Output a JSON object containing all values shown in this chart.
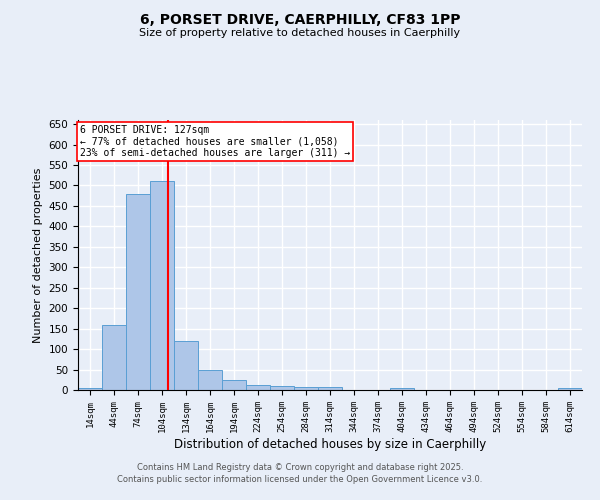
{
  "title1": "6, PORSET DRIVE, CAERPHILLY, CF83 1PP",
  "title2": "Size of property relative to detached houses in Caerphilly",
  "xlabel": "Distribution of detached houses by size in Caerphilly",
  "ylabel": "Number of detached properties",
  "bar_color": "#aec6e8",
  "bar_edge_color": "#5a9fd4",
  "background_color": "#e8eef8",
  "grid_color": "#ffffff",
  "red_line_x": 127,
  "annotation_title": "6 PORSET DRIVE: 127sqm",
  "annotation_line1": "← 77% of detached houses are smaller (1,058)",
  "annotation_line2": "23% of semi-detached houses are larger (311) →",
  "bin_edges": [
    14,
    44,
    74,
    104,
    134,
    164,
    194,
    224,
    254,
    284,
    314,
    344,
    374,
    404,
    434,
    464,
    494,
    524,
    554,
    584,
    614,
    644
  ],
  "bin_values": [
    5,
    160,
    480,
    510,
    120,
    50,
    25,
    12,
    10,
    8,
    8,
    0,
    0,
    5,
    0,
    0,
    0,
    0,
    0,
    0,
    4
  ],
  "ylim": [
    0,
    660
  ],
  "yticks": [
    0,
    50,
    100,
    150,
    200,
    250,
    300,
    350,
    400,
    450,
    500,
    550,
    600,
    650
  ],
  "footer1": "Contains HM Land Registry data © Crown copyright and database right 2025.",
  "footer2": "Contains public sector information licensed under the Open Government Licence v3.0."
}
